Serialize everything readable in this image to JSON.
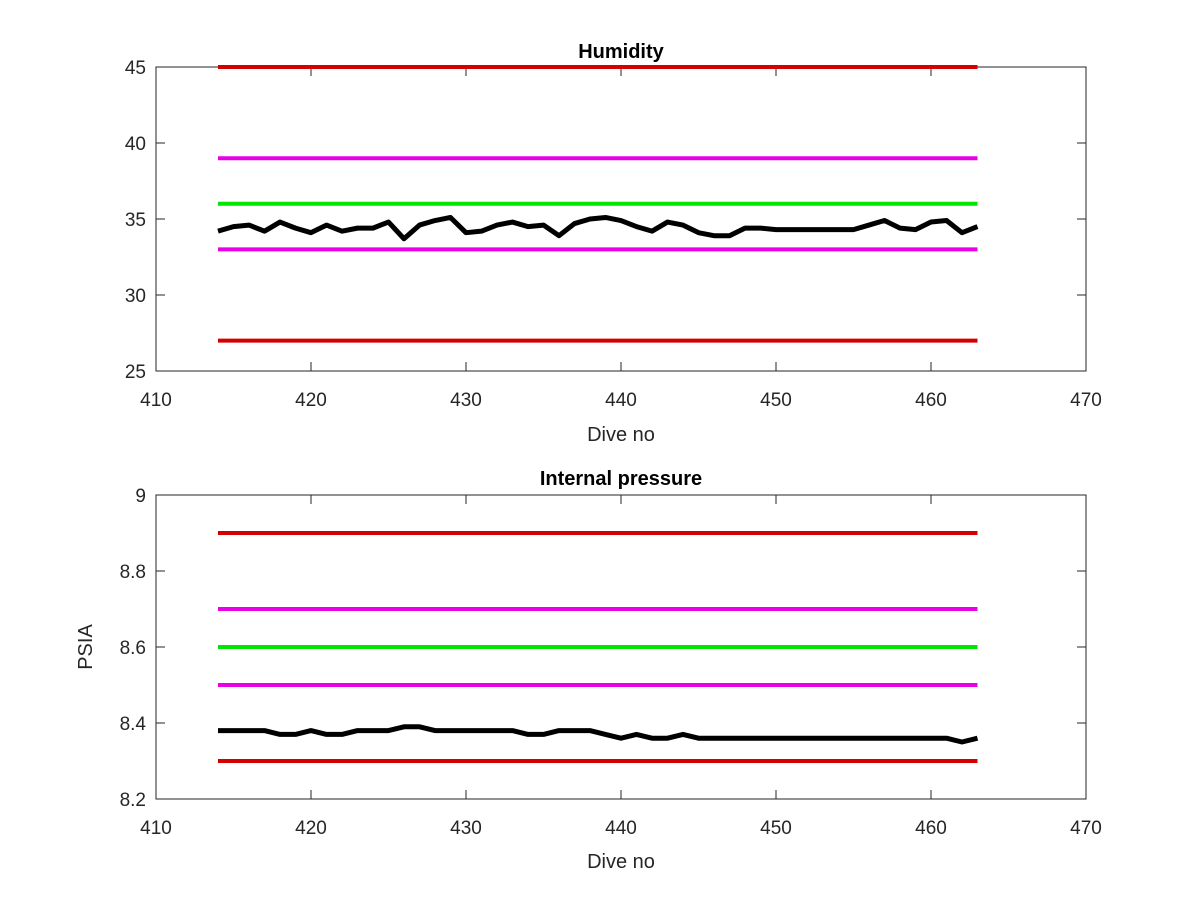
{
  "chart_data": [
    {
      "type": "line",
      "title": "Humidity",
      "xlabel": "Dive no",
      "ylabel": "",
      "xlim": [
        410,
        470
      ],
      "ylim": [
        25,
        45
      ],
      "xticks": [
        410,
        420,
        430,
        440,
        450,
        460,
        470
      ],
      "yticks": [
        25,
        30,
        35,
        40,
        45
      ],
      "xtick_labels": [
        "410",
        "420",
        "430",
        "440",
        "450",
        "460",
        "470"
      ],
      "ytick_labels": [
        "25",
        "30",
        "35",
        "40",
        "45"
      ],
      "grid": false,
      "series": [
        {
          "color": "#d40000",
          "x": [
            414,
            463
          ],
          "values": [
            45,
            45
          ]
        },
        {
          "color": "#e800e8",
          "x": [
            414,
            463
          ],
          "values": [
            39,
            39
          ]
        },
        {
          "color": "#00e600",
          "x": [
            414,
            463
          ],
          "values": [
            36,
            36
          ]
        },
        {
          "color": "#e800e8",
          "x": [
            414,
            463
          ],
          "values": [
            33,
            33
          ]
        },
        {
          "color": "#d40000",
          "x": [
            414,
            463
          ],
          "values": [
            27,
            27
          ]
        },
        {
          "color": "#000000",
          "x": [
            414,
            415,
            416,
            417,
            418,
            419,
            420,
            421,
            422,
            423,
            424,
            425,
            426,
            427,
            428,
            429,
            430,
            431,
            432,
            433,
            434,
            435,
            436,
            437,
            438,
            439,
            440,
            441,
            442,
            443,
            444,
            445,
            446,
            447,
            448,
            449,
            450,
            451,
            452,
            453,
            454,
            455,
            456,
            457,
            458,
            459,
            460,
            461,
            462,
            463
          ],
          "values": [
            34.2,
            34.5,
            34.6,
            34.2,
            34.8,
            34.4,
            34.1,
            34.6,
            34.2,
            34.4,
            34.4,
            34.8,
            33.7,
            34.6,
            34.9,
            35.1,
            34.1,
            34.2,
            34.6,
            34.8,
            34.5,
            34.6,
            33.9,
            34.7,
            35.0,
            35.1,
            34.9,
            34.5,
            34.2,
            34.8,
            34.6,
            34.1,
            33.9,
            33.9,
            34.4,
            34.4,
            34.3,
            34.3,
            34.3,
            34.3,
            34.3,
            34.3,
            34.6,
            34.9,
            34.4,
            34.3,
            34.8,
            34.9,
            34.1,
            34.5
          ]
        }
      ]
    },
    {
      "type": "line",
      "title": "Internal pressure",
      "xlabel": "Dive no",
      "ylabel": "PSIA",
      "xlim": [
        410,
        470
      ],
      "ylim": [
        8.2,
        9.0
      ],
      "xticks": [
        410,
        420,
        430,
        440,
        450,
        460,
        470
      ],
      "yticks": [
        8.2,
        8.4,
        8.6,
        8.8,
        9.0
      ],
      "xtick_labels": [
        "410",
        "420",
        "430",
        "440",
        "450",
        "460",
        "470"
      ],
      "ytick_labels": [
        "8.2",
        "8.4",
        "8.6",
        "8.8",
        "9"
      ],
      "grid": false,
      "series": [
        {
          "color": "#d40000",
          "x": [
            414,
            463
          ],
          "values": [
            8.9,
            8.9
          ]
        },
        {
          "color": "#e800e8",
          "x": [
            414,
            463
          ],
          "values": [
            8.7,
            8.7
          ]
        },
        {
          "color": "#00e600",
          "x": [
            414,
            463
          ],
          "values": [
            8.6,
            8.6
          ]
        },
        {
          "color": "#e800e8",
          "x": [
            414,
            463
          ],
          "values": [
            8.5,
            8.5
          ]
        },
        {
          "color": "#d40000",
          "x": [
            414,
            463
          ],
          "values": [
            8.3,
            8.3
          ]
        },
        {
          "color": "#000000",
          "x": [
            414,
            415,
            416,
            417,
            418,
            419,
            420,
            421,
            422,
            423,
            424,
            425,
            426,
            427,
            428,
            429,
            430,
            431,
            432,
            433,
            434,
            435,
            436,
            437,
            438,
            439,
            440,
            441,
            442,
            443,
            444,
            445,
            446,
            447,
            448,
            449,
            450,
            451,
            452,
            453,
            454,
            455,
            456,
            457,
            458,
            459,
            460,
            461,
            462,
            463
          ],
          "values": [
            8.38,
            8.38,
            8.38,
            8.38,
            8.37,
            8.37,
            8.38,
            8.37,
            8.37,
            8.38,
            8.38,
            8.38,
            8.39,
            8.39,
            8.38,
            8.38,
            8.38,
            8.38,
            8.38,
            8.38,
            8.37,
            8.37,
            8.38,
            8.38,
            8.38,
            8.37,
            8.36,
            8.37,
            8.36,
            8.36,
            8.37,
            8.36,
            8.36,
            8.36,
            8.36,
            8.36,
            8.36,
            8.36,
            8.36,
            8.36,
            8.36,
            8.36,
            8.36,
            8.36,
            8.36,
            8.36,
            8.36,
            8.36,
            8.35,
            8.36
          ]
        }
      ]
    }
  ]
}
